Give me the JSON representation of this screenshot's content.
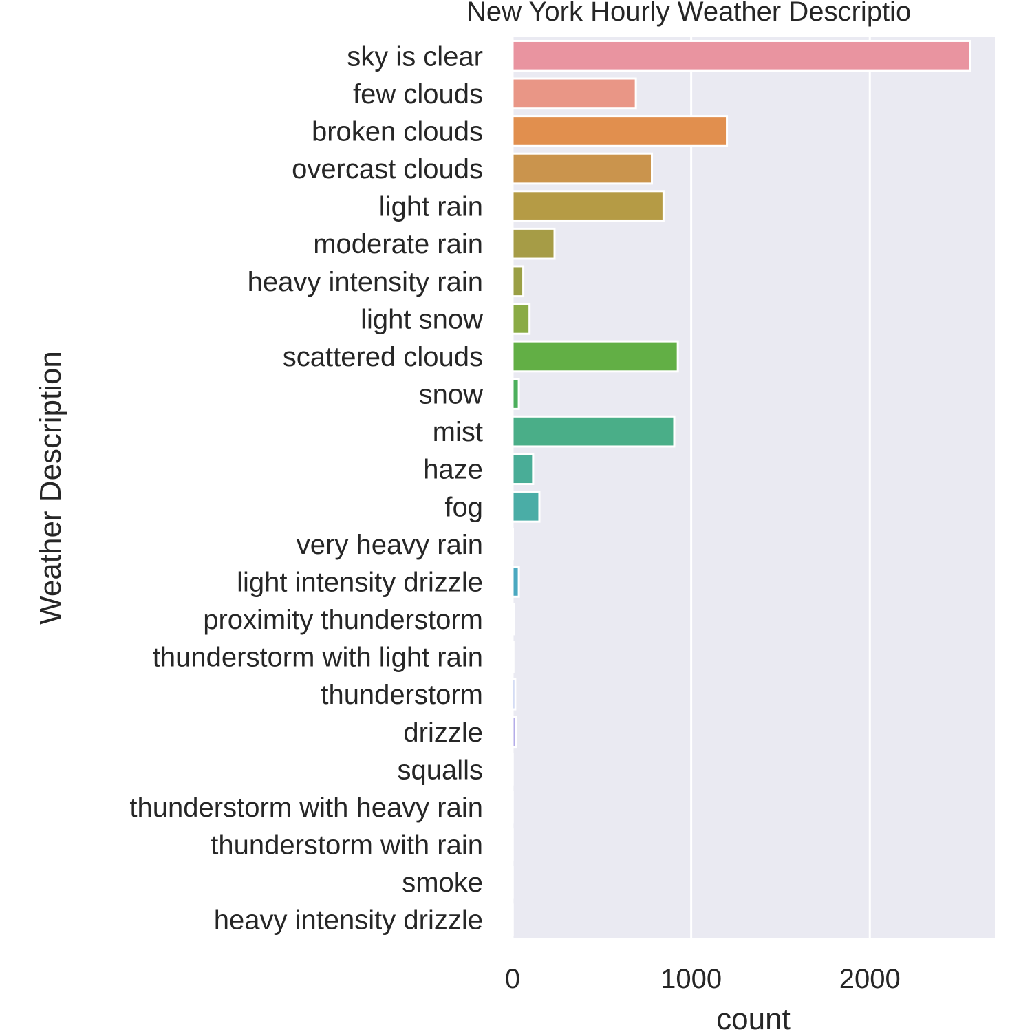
{
  "chart_data": {
    "type": "bar",
    "orientation": "horizontal",
    "title": "New York Hourly Weather Descriptio",
    "xlabel": "count",
    "ylabel": "Weather Description",
    "xlim": [
      0,
      2700
    ],
    "x_ticks": [
      0,
      1000,
      2000
    ],
    "x_tick_labels": [
      "0",
      "1000",
      "2000"
    ],
    "grid": true,
    "categories": [
      "sky is clear",
      "few clouds",
      "broken clouds",
      "overcast clouds",
      "light rain",
      "moderate rain",
      "heavy intensity rain",
      "light snow",
      "scattered clouds",
      "snow",
      "mist",
      "haze",
      "fog",
      "very heavy rain",
      "light intensity drizzle",
      "proximity thunderstorm",
      "thunderstorm with light rain",
      "thunderstorm",
      "drizzle",
      "squalls",
      "thunderstorm with heavy rain",
      "thunderstorm with rain",
      "smoke",
      "heavy intensity drizzle"
    ],
    "values": [
      2560,
      690,
      1200,
      780,
      845,
      235,
      60,
      95,
      925,
      35,
      905,
      115,
      150,
      2,
      35,
      8,
      5,
      15,
      20,
      1,
      1,
      1,
      1,
      1
    ],
    "colors": [
      "#e994a0",
      "#e99686",
      "#e18f4e",
      "#ca944d",
      "#b59b45",
      "#a69c46",
      "#9a9f45",
      "#8aab45",
      "#62af45",
      "#4caf5c",
      "#4aae88",
      "#49ad97",
      "#4aada6",
      "#4aadb4",
      "#4aa8c0",
      "#63a8d2",
      "#8fb2df",
      "#a9b9e8",
      "#b4ace8",
      "#c1a8e5",
      "#d2a8e3",
      "#e3a8dc",
      "#eba5c9",
      "#eda5b8"
    ],
    "plot_background": "#eaeaf2",
    "grid_color": "#ffffff"
  }
}
